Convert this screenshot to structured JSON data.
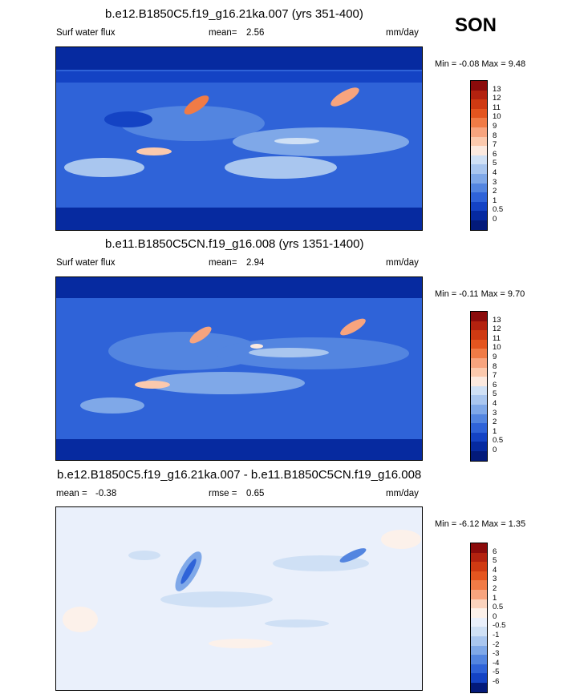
{
  "season": "SON",
  "panels": [
    {
      "title": "b.e12.B1850C5.f19_g16.21ka.007 (yrs 351-400)",
      "left_label": "Surf water flux",
      "mean_label": "mean=",
      "mean_value": "2.56",
      "mid_label": "",
      "mid_value": "",
      "units": "mm/day",
      "minmax": "Min =  -0.08 Max =   9.48",
      "palette": "abs",
      "levels": [
        "13",
        "12",
        "11",
        "10",
        "9",
        "8",
        "7",
        "6",
        "5",
        "4",
        "3",
        "2",
        "1",
        "0.5",
        "0"
      ]
    },
    {
      "title": "b.e11.B1850C5CN.f19_g16.008 (yrs 1351-1400)",
      "left_label": "Surf water flux",
      "mean_label": "mean=",
      "mean_value": "2.94",
      "mid_label": "",
      "mid_value": "",
      "units": "mm/day",
      "minmax": "Min =  -0.11 Max =   9.70",
      "palette": "abs",
      "levels": [
        "13",
        "12",
        "11",
        "10",
        "9",
        "8",
        "7",
        "6",
        "5",
        "4",
        "3",
        "2",
        "1",
        "0.5",
        "0"
      ]
    },
    {
      "title": "b.e12.B1850C5.f19_g16.21ka.007 - b.e11.B1850C5CN.f19_g16.008",
      "left_label": "mean =",
      "mean_label": "",
      "mean_value": "-0.38",
      "mid_label": "rmse =",
      "mid_value": "0.65",
      "units": "mm/day",
      "minmax": "Min =  -6.12 Max =   1.35",
      "palette": "diff",
      "levels": [
        "6",
        "5",
        "4",
        "3",
        "2",
        "1",
        "0.5",
        "0",
        "-0.5",
        "-1",
        "-2",
        "-3",
        "-4",
        "-5",
        "-6"
      ]
    }
  ],
  "colors": {
    "abs_palette": [
      "#8b0b0b",
      "#b3220f",
      "#cf3a12",
      "#e4551f",
      "#f07b46",
      "#f7a47e",
      "#fbc9ad",
      "#fbe9df",
      "#cfe0f5",
      "#a9c6ef",
      "#7fa8e8",
      "#5385e0",
      "#2f63d8",
      "#1443c4",
      "#062aa0",
      "#031a7a"
    ],
    "diff_palette": [
      "#8b0b0b",
      "#b3220f",
      "#cf3a12",
      "#e4551f",
      "#f07b46",
      "#f7a47e",
      "#fbd3bd",
      "#fcf1ea",
      "#eaf0fb",
      "#cfe0f5",
      "#a9c6ef",
      "#7fa8e8",
      "#5385e0",
      "#2f63d8",
      "#1443c4",
      "#031a7a"
    ],
    "coast": "#000000"
  },
  "chart_data": [
    {
      "type": "heatmap",
      "title": "b.e12.B1850C5.f19_g16.21ka.007 (yrs 351-400)",
      "variable": "Surf water flux",
      "units": "mm/day",
      "mean": 2.56,
      "min": -0.08,
      "max": 9.48,
      "contour_levels": [
        0,
        0.5,
        1,
        2,
        3,
        4,
        5,
        6,
        7,
        8,
        9,
        10,
        11,
        12,
        13
      ]
    },
    {
      "type": "heatmap",
      "title": "b.e11.B1850C5CN.f19_g16.008 (yrs 1351-1400)",
      "variable": "Surf water flux",
      "units": "mm/day",
      "mean": 2.94,
      "min": -0.11,
      "max": 9.7,
      "contour_levels": [
        0,
        0.5,
        1,
        2,
        3,
        4,
        5,
        6,
        7,
        8,
        9,
        10,
        11,
        12,
        13
      ]
    },
    {
      "type": "heatmap",
      "title": "b.e12.B1850C5.f19_g16.21ka.007 - b.e11.B1850C5CN.f19_g16.008",
      "units": "mm/day",
      "mean": -0.38,
      "rmse": 0.65,
      "min": -6.12,
      "max": 1.35,
      "contour_levels": [
        -6,
        -5,
        -4,
        -3,
        -2,
        -1,
        -0.5,
        0,
        0.5,
        1,
        2,
        3,
        4,
        5,
        6
      ]
    }
  ]
}
